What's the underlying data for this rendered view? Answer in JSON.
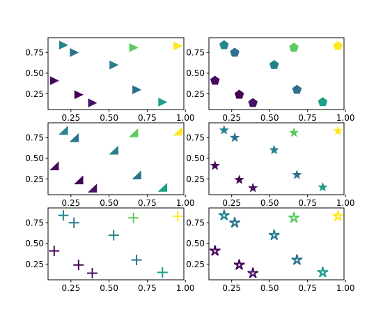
{
  "figure": {
    "background": "#ffffff"
  },
  "chart_data": [
    {
      "type": "scatter",
      "marker": "triangle-right",
      "x": [
        0.14,
        0.2,
        0.27,
        0.3,
        0.39,
        0.53,
        0.66,
        0.68,
        0.85,
        0.95
      ],
      "y": [
        0.41,
        0.84,
        0.75,
        0.24,
        0.14,
        0.6,
        0.81,
        0.3,
        0.15,
        0.83
      ],
      "colors": [
        "#46085c",
        "#26838f",
        "#2c728e",
        "#440154",
        "#471164",
        "#277f8e",
        "#5ec962",
        "#2c718e",
        "#1f9e89",
        "#fde725"
      ],
      "xlim": [
        0.1,
        0.99
      ],
      "ylim": [
        0.06,
        0.93
      ],
      "xticks": [
        "0.25",
        "0.50",
        "0.75",
        "1.00"
      ],
      "xtick_values": [
        0.25,
        0.5,
        0.75,
        1.0
      ],
      "yticks": [
        "0.25",
        "0.50",
        "0.75"
      ],
      "ytick_values": [
        0.25,
        0.5,
        0.75
      ]
    },
    {
      "type": "scatter",
      "marker": "pentagon",
      "x": [
        0.14,
        0.2,
        0.27,
        0.3,
        0.39,
        0.53,
        0.66,
        0.68,
        0.85,
        0.95
      ],
      "y": [
        0.41,
        0.84,
        0.75,
        0.24,
        0.14,
        0.6,
        0.81,
        0.3,
        0.15,
        0.83
      ],
      "colors": [
        "#46085c",
        "#26838f",
        "#2c728e",
        "#440154",
        "#471164",
        "#277f8e",
        "#5ec962",
        "#2c718e",
        "#1f9e89",
        "#fde725"
      ],
      "xlim": [
        0.1,
        0.99
      ],
      "ylim": [
        0.06,
        0.93
      ],
      "xticks": [
        "0.25",
        "0.50",
        "0.75",
        "1.00"
      ],
      "xtick_values": [
        0.25,
        0.5,
        0.75,
        1.0
      ],
      "yticks": [
        "0.25",
        "0.50",
        "0.75"
      ],
      "ytick_values": [
        0.25,
        0.5,
        0.75
      ]
    },
    {
      "type": "scatter",
      "marker": "triangle-corner",
      "x": [
        0.14,
        0.2,
        0.27,
        0.3,
        0.39,
        0.53,
        0.66,
        0.68,
        0.85,
        0.95
      ],
      "y": [
        0.41,
        0.84,
        0.75,
        0.24,
        0.14,
        0.6,
        0.81,
        0.3,
        0.15,
        0.83
      ],
      "colors": [
        "#46085c",
        "#26838f",
        "#2c728e",
        "#440154",
        "#471164",
        "#277f8e",
        "#5ec962",
        "#2c718e",
        "#1f9e89",
        "#fde725"
      ],
      "xlim": [
        0.1,
        0.99
      ],
      "ylim": [
        0.06,
        0.93
      ],
      "xticks": [
        "0.25",
        "0.50",
        "0.75",
        "1.00"
      ],
      "xtick_values": [
        0.25,
        0.5,
        0.75,
        1.0
      ],
      "yticks": [
        "0.25",
        "0.50",
        "0.75"
      ],
      "ytick_values": [
        0.25,
        0.5,
        0.75
      ]
    },
    {
      "type": "scatter",
      "marker": "star",
      "x": [
        0.14,
        0.2,
        0.27,
        0.3,
        0.39,
        0.53,
        0.66,
        0.68,
        0.85,
        0.95
      ],
      "y": [
        0.41,
        0.84,
        0.75,
        0.24,
        0.14,
        0.6,
        0.81,
        0.3,
        0.15,
        0.83
      ],
      "colors": [
        "#46085c",
        "#26838f",
        "#2c728e",
        "#440154",
        "#471164",
        "#277f8e",
        "#5ec962",
        "#2c718e",
        "#1f9e89",
        "#fde725"
      ],
      "xlim": [
        0.1,
        0.99
      ],
      "ylim": [
        0.06,
        0.93
      ],
      "xticks": [
        "0.25",
        "0.50",
        "0.75",
        "1.00"
      ],
      "xtick_values": [
        0.25,
        0.5,
        0.75,
        1.0
      ],
      "yticks": [
        "0.25",
        "0.50",
        "0.75"
      ],
      "ytick_values": [
        0.25,
        0.5,
        0.75
      ]
    },
    {
      "type": "scatter",
      "marker": "plus",
      "x": [
        0.14,
        0.2,
        0.27,
        0.3,
        0.39,
        0.53,
        0.66,
        0.68,
        0.85,
        0.95
      ],
      "y": [
        0.41,
        0.84,
        0.75,
        0.24,
        0.14,
        0.6,
        0.81,
        0.3,
        0.15,
        0.83
      ],
      "colors": [
        "#46085c",
        "#26838f",
        "#2c728e",
        "#440154",
        "#471164",
        "#277f8e",
        "#5ec962",
        "#2c718e",
        "#1f9e89",
        "#fde725"
      ],
      "xlim": [
        0.1,
        0.99
      ],
      "ylim": [
        0.06,
        0.93
      ],
      "xticks": [
        "0.25",
        "0.50",
        "0.75",
        "1.00"
      ],
      "xtick_values": [
        0.25,
        0.5,
        0.75,
        1.0
      ],
      "yticks": [
        "0.25",
        "0.50",
        "0.75"
      ],
      "ytick_values": [
        0.25,
        0.5,
        0.75
      ]
    },
    {
      "type": "scatter",
      "marker": "star-thin",
      "x": [
        0.14,
        0.2,
        0.27,
        0.3,
        0.39,
        0.53,
        0.66,
        0.68,
        0.85,
        0.95
      ],
      "y": [
        0.41,
        0.84,
        0.75,
        0.24,
        0.14,
        0.6,
        0.81,
        0.3,
        0.15,
        0.83
      ],
      "colors": [
        "#46085c",
        "#26838f",
        "#2c728e",
        "#440154",
        "#471164",
        "#277f8e",
        "#5ec962",
        "#2c718e",
        "#1f9e89",
        "#fde725"
      ],
      "xlim": [
        0.1,
        0.99
      ],
      "ylim": [
        0.06,
        0.93
      ],
      "xticks": [
        "0.25",
        "0.50",
        "0.75",
        "1.00"
      ],
      "xtick_values": [
        0.25,
        0.5,
        0.75,
        1.0
      ],
      "yticks": [
        "0.25",
        "0.50",
        "0.75"
      ],
      "ytick_values": [
        0.25,
        0.5,
        0.75
      ]
    }
  ]
}
